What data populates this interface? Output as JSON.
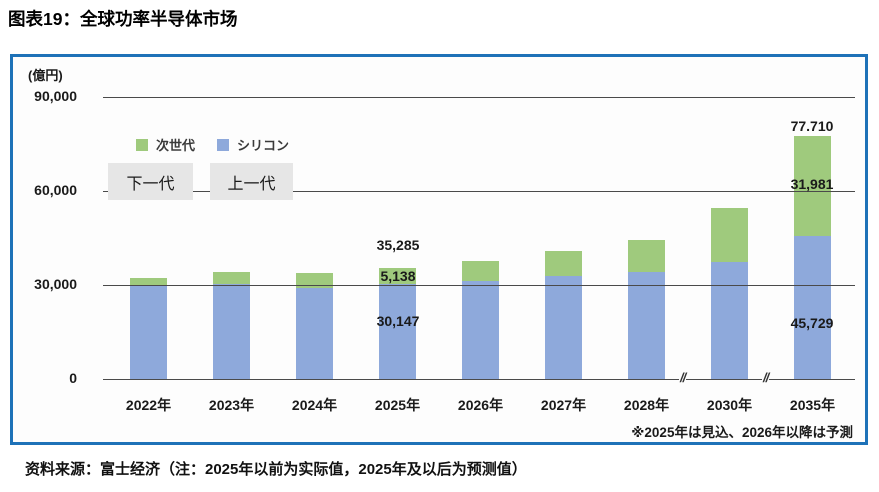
{
  "title": "图表19：全球功率半导体市场",
  "source_note": "资料来源：富士经济（注：2025年以前为实际值，2025年及以后为预测值）",
  "chart": {
    "unit_label": "(億円)",
    "y_ticks": [
      "90,000",
      "60,000",
      "30,000",
      "0"
    ],
    "legend": [
      {
        "label": "次世代",
        "color": "#9fca7d"
      },
      {
        "label": "シリコン",
        "color": "#8ea9db"
      }
    ],
    "overlay_translations": [
      {
        "label": "下一代"
      },
      {
        "label": "上一代"
      }
    ],
    "axis_break": "//",
    "footnote": "※2025年は見込、2026年以降は予測",
    "annotations": {
      "y2025": {
        "total": "35,285",
        "next_gen": "5,138",
        "silicon": "30,147"
      },
      "y2035": {
        "total": "77.710",
        "next_gen": "31,981",
        "silicon": "45,729"
      }
    }
  },
  "chart_data": {
    "type": "bar",
    "stacked": true,
    "title": "全球功率半导体市场",
    "ylabel": "(億円)",
    "ylim": [
      0,
      90000
    ],
    "yticks": [
      0,
      30000,
      60000,
      90000
    ],
    "grid": true,
    "legend_position": "upper-left-inside",
    "categories": [
      "2022年",
      "2023年",
      "2024年",
      "2025年",
      "2026年",
      "2027年",
      "2028年",
      "2030年",
      "2035年"
    ],
    "series": [
      {
        "name": "シリコン",
        "color": "#8ea9db",
        "values": [
          29700,
          30300,
          29000,
          30147,
          31200,
          32700,
          34000,
          37400,
          45729
        ]
      },
      {
        "name": "次世代",
        "color": "#9fca7d",
        "values": [
          2600,
          3900,
          4700,
          5138,
          6400,
          8200,
          10300,
          17100,
          31981
        ]
      }
    ],
    "data_labels": [
      {
        "category": "2025年",
        "total": 35285,
        "next_gen": 5138,
        "silicon": 30147
      },
      {
        "category": "2035年",
        "total": 77710,
        "next_gen": 31981,
        "silicon": 45729
      }
    ],
    "axis_breaks_between": [
      [
        "2028年",
        "2030年"
      ],
      [
        "2030年",
        "2035年"
      ]
    ],
    "note": "※2025年は見込、2026年以降は予測"
  }
}
